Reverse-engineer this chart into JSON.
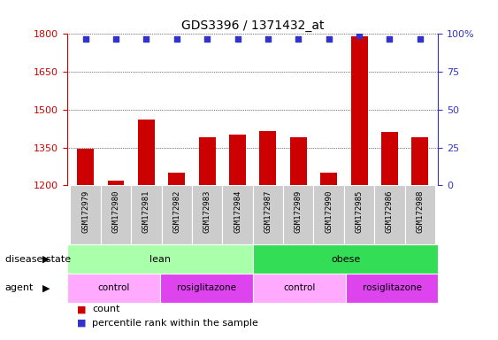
{
  "title": "GDS3396 / 1371432_at",
  "samples": [
    "GSM172979",
    "GSM172980",
    "GSM172981",
    "GSM172982",
    "GSM172983",
    "GSM172984",
    "GSM172987",
    "GSM172989",
    "GSM172990",
    "GSM172985",
    "GSM172986",
    "GSM172988"
  ],
  "bar_values": [
    1345,
    1220,
    1460,
    1250,
    1390,
    1400,
    1415,
    1390,
    1250,
    1790,
    1410,
    1390
  ],
  "dot_values": [
    97,
    97,
    97,
    97,
    97,
    97,
    97,
    97,
    97,
    99,
    97,
    97
  ],
  "ylim_left": [
    1200,
    1800
  ],
  "ylim_right": [
    0,
    100
  ],
  "yticks_left": [
    1200,
    1350,
    1500,
    1650,
    1800
  ],
  "yticks_right": [
    0,
    25,
    50,
    75,
    100
  ],
  "bar_color": "#cc0000",
  "dot_color": "#3333cc",
  "disease_state_groups": [
    {
      "label": "lean",
      "start": 0,
      "end": 6,
      "color": "#aaffaa"
    },
    {
      "label": "obese",
      "start": 6,
      "end": 12,
      "color": "#33dd55"
    }
  ],
  "agent_groups": [
    {
      "label": "control",
      "start": 0,
      "end": 3,
      "color": "#ffaaff"
    },
    {
      "label": "rosiglitazone",
      "start": 3,
      "end": 6,
      "color": "#dd44ee"
    },
    {
      "label": "control",
      "start": 6,
      "end": 9,
      "color": "#ffaaff"
    },
    {
      "label": "rosiglitazone",
      "start": 9,
      "end": 12,
      "color": "#dd44ee"
    }
  ],
  "label_disease_state": "disease state",
  "label_agent": "agent",
  "legend_count": "count",
  "legend_percentile": "percentile rank within the sample",
  "bg_color": "#ffffff",
  "tick_label_color_left": "#cc0000",
  "tick_label_color_right": "#3333cc",
  "grid_color": "#000000",
  "bar_width": 0.55,
  "xtick_bg_color": "#cccccc"
}
